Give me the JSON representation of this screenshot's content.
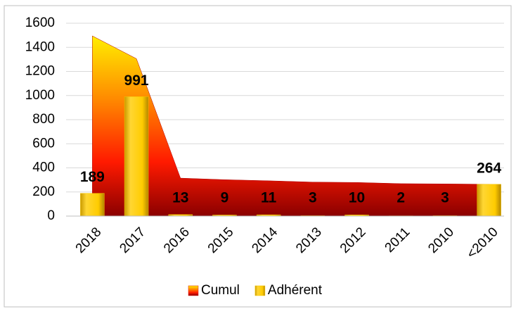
{
  "chart_data": {
    "type": "bar+area",
    "categories": [
      "2018",
      "2017",
      "2016",
      "2015",
      "2014",
      "2013",
      "2012",
      "2011",
      "2010",
      "<2010"
    ],
    "series": [
      {
        "name": "Cumul",
        "type": "area",
        "color": "#e02010",
        "values": [
          1495,
          1306,
          315,
          302,
          293,
          282,
          279,
          269,
          267,
          264
        ]
      },
      {
        "name": "Adhérent",
        "type": "bar",
        "color": "#f5c400",
        "values": [
          189,
          991,
          13,
          9,
          11,
          3,
          10,
          2,
          3,
          264
        ]
      }
    ],
    "ylim": [
      0,
      1600
    ],
    "yticks": [
      0,
      200,
      400,
      600,
      800,
      1000,
      1200,
      1400,
      1600
    ],
    "grid": true,
    "legend": "bottom"
  }
}
